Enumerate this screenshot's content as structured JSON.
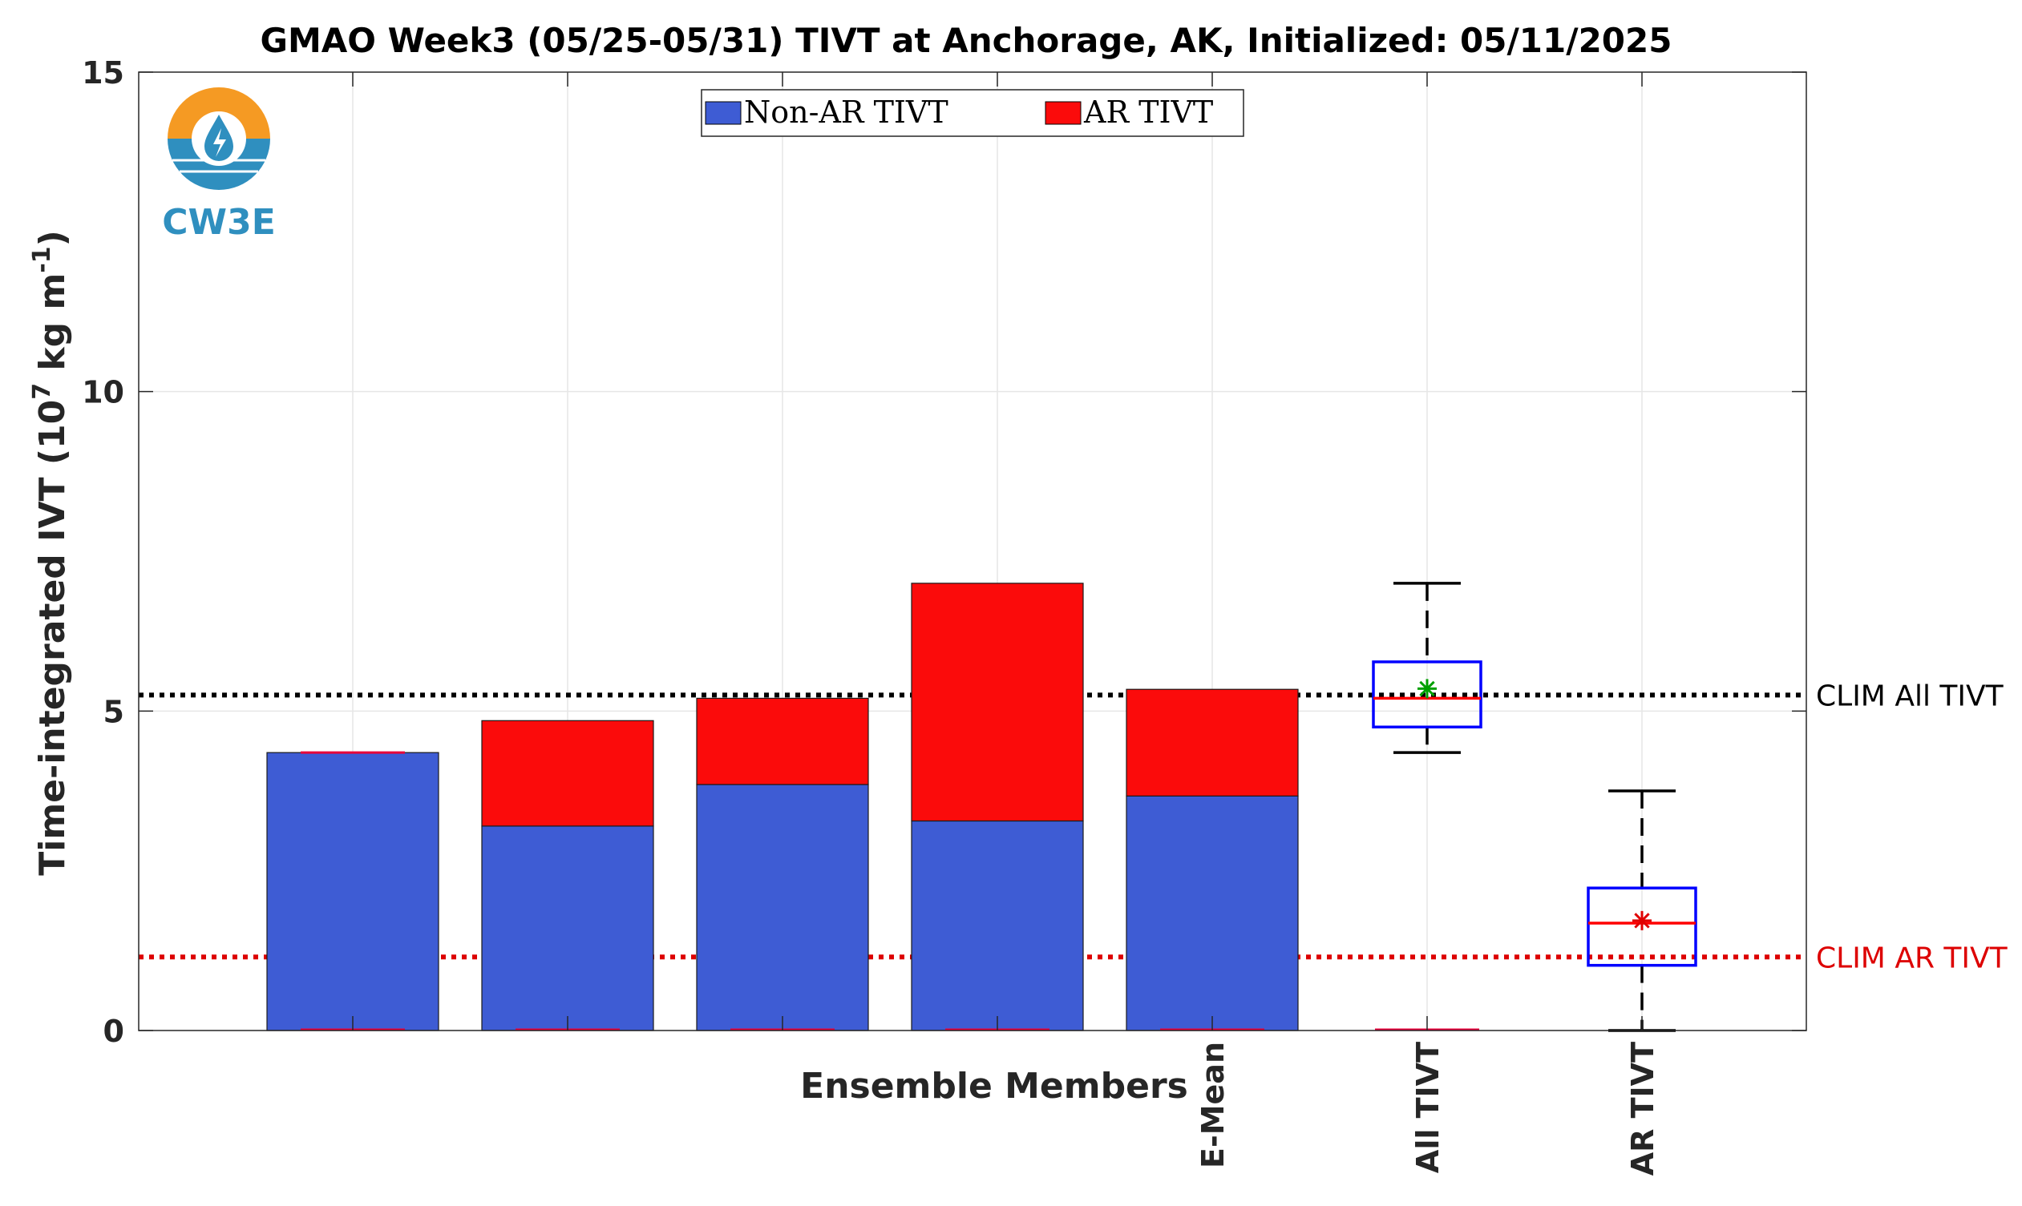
{
  "chart_data": {
    "type": "bar",
    "title": "GMAO Week3 (05/25-05/31) TIVT at Anchorage, AK, Initialized: 05/11/2025",
    "xlabel": "Ensemble Members",
    "ylabel_main": "Time-integrated IVT (10",
    "ylabel_exp1": "7",
    "ylabel_mid": " kg m",
    "ylabel_exp2": "-1",
    "ylabel_end": ")",
    "ylim": [
      0,
      15
    ],
    "yticks": [
      0,
      5,
      10,
      15
    ],
    "stacked": true,
    "categories": [
      "",
      "",
      "",
      "",
      "E-Mean"
    ],
    "series": [
      {
        "name": "Non-AR TIVT",
        "color": "#3e5cd4",
        "values": [
          4.35,
          3.2,
          3.85,
          3.28,
          3.67
        ]
      },
      {
        "name": "AR TIVT",
        "color": "#fb0b0b",
        "values": [
          0.0,
          1.65,
          1.35,
          3.72,
          1.67
        ]
      }
    ],
    "boxplots": [
      {
        "label": "All TIVT",
        "min": 4.35,
        "q1": 4.75,
        "median": 5.2,
        "q3": 5.77,
        "max": 7.0,
        "mean": 5.35,
        "mean_color": "#00a000"
      },
      {
        "label": "AR TIVT",
        "min": 0.0,
        "q1": 1.02,
        "median": 1.68,
        "q3": 2.23,
        "max": 3.75,
        "mean": 1.72,
        "mean_color": "#e00000"
      }
    ],
    "reference_lines": [
      {
        "label": "CLIM All TIVT",
        "value": 5.25,
        "color": "#000000"
      },
      {
        "label": "CLIM AR TIVT",
        "value": 1.15,
        "color": "#dd0000"
      }
    ],
    "grid": true,
    "legend_position": "top-center"
  },
  "logo": {
    "text": "CW3E"
  }
}
